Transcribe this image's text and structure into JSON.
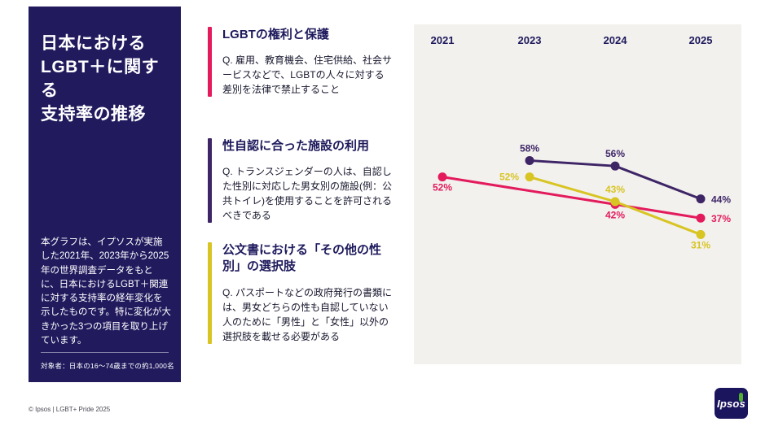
{
  "colors": {
    "navy": "#211b5e",
    "pink": "#e31b5d",
    "purple": "#3e2566",
    "yellow": "#d8c422",
    "chart_bg": "#f2f1ee",
    "logo_green": "#52ae32"
  },
  "sidebar": {
    "title_lines": [
      "日本における",
      "LGBT＋に関する",
      "支持率の推移"
    ],
    "description": "本グラフは、イプソスが実施した2021年、2023年から2025年の世界調査データをもとに、日本におけるLGBT＋関連に対する支持率の経年変化を示したものです。特に変化が大きかった3つの項目を取り上げています。",
    "note": "対象者：日本の16～74歳までの約1,000名"
  },
  "sections": [
    {
      "color": "#e31b5d",
      "title": "LGBTの権利と保護",
      "question": "Q. 雇用、教育機会、住宅供給、社会サービスなどで、LGBTの人々に対する差別を法律で禁止すること"
    },
    {
      "color": "#3e2566",
      "title": "性自認に合った施設の利用",
      "question": "Q. トランスジェンダーの人は、自認した性別に対応した男女別の施設(例：公共トイレ)を使用することを許可されるべきである"
    },
    {
      "color": "#d8c422",
      "title": "公文書における「その他の性別」の選択肢",
      "question": "Q. パスポートなどの政府発行の書類には、男女どちらの性も自認していない人のために「男性」と「女性」以外の選択肢を載せる必要がある"
    }
  ],
  "chart_data": {
    "type": "line",
    "title": "日本におけるLGBT＋に関する支持率の推移",
    "categories": [
      "2021",
      "2023",
      "2024",
      "2025"
    ],
    "axis_color": "#1e1a5c",
    "value_suffix": "%",
    "ylim": [
      25,
      65
    ],
    "grid": false,
    "legend_position": "left-sections",
    "series": [
      {
        "name": "LGBTの権利と保護",
        "color": "#e31b5d",
        "points": [
          {
            "x": "2021",
            "v": 52,
            "label": "below"
          },
          {
            "x": "2024",
            "v": 42,
            "label": "below"
          },
          {
            "x": "2025",
            "v": 37,
            "label": "right"
          }
        ]
      },
      {
        "name": "性自認に合った施設の利用",
        "color": "#3e2566",
        "points": [
          {
            "x": "2023",
            "v": 58,
            "label": "above"
          },
          {
            "x": "2024",
            "v": 56,
            "label": "above"
          },
          {
            "x": "2025",
            "v": 44,
            "label": "right"
          }
        ]
      },
      {
        "name": "公文書における「その他の性別」の選択肢",
        "color": "#d8c422",
        "points": [
          {
            "x": "2023",
            "v": 52,
            "label": "left"
          },
          {
            "x": "2024",
            "v": 43,
            "label": "above"
          },
          {
            "x": "2025",
            "v": 31,
            "label": "below"
          }
        ]
      }
    ]
  },
  "footer": {
    "copyright": "© Ipsos | LGBT+ Pride 2025",
    "logo_text": "Ipsos"
  }
}
